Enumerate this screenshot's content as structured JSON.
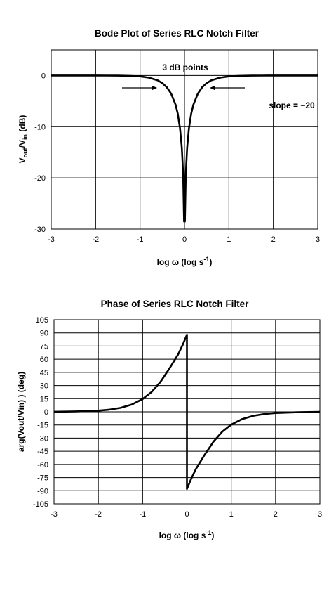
{
  "chart_data": [
    {
      "type": "line",
      "title": "Bode Plot of Series RLC Notch Filter",
      "xlabel": {
        "base": "log ω (log s",
        "sup": "-1",
        "end": ")"
      },
      "ylabel": {
        "v1": "V",
        "s1": "out",
        "mid": "/V",
        "s2": "in",
        "end": " (dB)"
      },
      "xlim": [
        -3,
        3
      ],
      "ylim": [
        -30,
        5
      ],
      "xticks": [
        "-3",
        "-2",
        "-1",
        "0",
        "1",
        "2",
        "3"
      ],
      "yticks": [
        "0",
        "-10",
        "-20",
        "-30"
      ],
      "grid": true,
      "annotations": {
        "three_db": "3 dB points",
        "slope": "slope = −20"
      },
      "series": [
        {
          "x": [
            -3,
            -2.5,
            -2,
            -1.75,
            -1.5,
            -1.25,
            -1,
            -0.8,
            -0.6,
            -0.5,
            -0.4,
            -0.3,
            -0.2,
            -0.15,
            -0.1,
            -0.06,
            -0.03,
            -0.01,
            0,
            0.01,
            0.03,
            0.06,
            0.1,
            0.15,
            0.2,
            0.3,
            0.4,
            0.5,
            0.6,
            0.8,
            1,
            1.25,
            1.5,
            1.75,
            2,
            2.5,
            3
          ],
          "values": [
            0,
            0,
            0,
            -0.01,
            -0.02,
            -0.06,
            -0.18,
            -0.42,
            -0.96,
            -1.48,
            -2.28,
            -3.55,
            -5.7,
            -7.5,
            -10.4,
            -14.1,
            -19.2,
            -28.5,
            -28.5,
            -28.5,
            -19.2,
            -14.1,
            -10.4,
            -7.5,
            -5.7,
            -3.55,
            -2.28,
            -1.48,
            -0.96,
            -0.42,
            -0.18,
            -0.06,
            -0.02,
            -0.01,
            0,
            0,
            0
          ]
        }
      ]
    },
    {
      "type": "line",
      "title": "Phase of Series RLC Notch Filter",
      "xlabel": {
        "base": "log ω (log s",
        "sup": "-1",
        "end": ")"
      },
      "ylabel": {
        "text": "arg(Vout/Vin) ) (deg)"
      },
      "xlim": [
        -3,
        3
      ],
      "ylim": [
        -105,
        105
      ],
      "xticks": [
        "-3",
        "-2",
        "-1",
        "0",
        "1",
        "2",
        "3"
      ],
      "yticks": [
        "105",
        "90",
        "75",
        "60",
        "45",
        "30",
        "15",
        "0",
        "-15",
        "-30",
        "-45",
        "-60",
        "-75",
        "-90",
        "-105"
      ],
      "grid": true,
      "series": [
        {
          "x": [
            -3,
            -2.5,
            -2,
            -1.75,
            -1.5,
            -1.25,
            -1,
            -0.8,
            -0.6,
            -0.4,
            -0.2,
            -0.1,
            0,
            0,
            0.1,
            0.2,
            0.4,
            0.6,
            0.8,
            1,
            1.25,
            1.5,
            1.75,
            2,
            2.5,
            3
          ],
          "values": [
            0.1,
            0.5,
            1.4,
            2.5,
            4.5,
            8.2,
            14.6,
            22.5,
            34,
            49,
            65.5,
            76,
            88,
            -88,
            -76,
            -65.5,
            -49,
            -34,
            -22.5,
            -14.6,
            -8.2,
            -4.5,
            -2.5,
            -1.4,
            -0.5,
            -0.1
          ]
        }
      ]
    }
  ]
}
